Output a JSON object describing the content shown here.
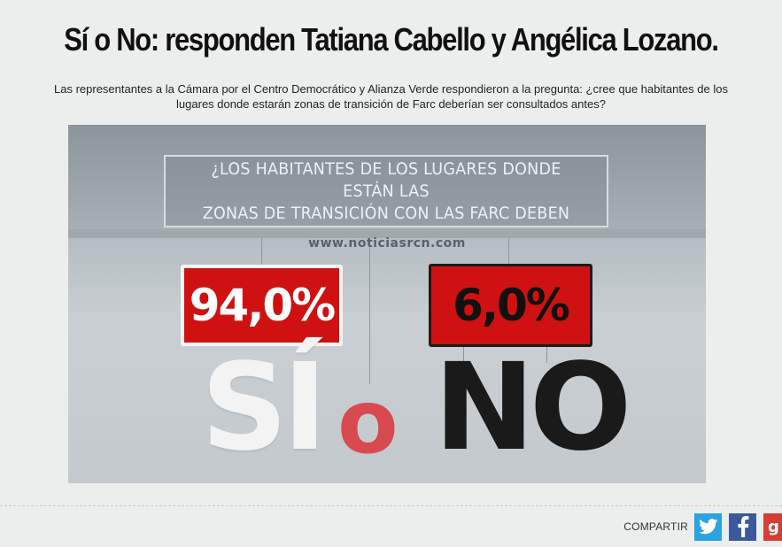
{
  "article": {
    "title": "Sí o No: responden Tatiana Cabello y Angélica Lozano.",
    "lead": "Las representantes a la Cámara por el Centro Democrático y Alianza Verde respondieron a la pregunta: ¿cree que habitantes de los lugares donde estarán zonas de transición de Farc deberían ser consultados antes?"
  },
  "media": {
    "question_lines": [
      "¿LOS HABITANTES DE LOS LUGARES DONDE",
      "ESTÁN LAS",
      "ZONAS DE TRANSICIÓN CON LAS FARC DEBEN"
    ],
    "watermark": "www.noticiasrcn.com",
    "yes_percent": "94,0%",
    "no_percent": "6,0%",
    "yes_word": "SÍ",
    "or_word": "o",
    "no_word": "NO",
    "colors": {
      "yes_box": "#cf1111",
      "no_box": "#cf1111",
      "or_word": "#d84a50"
    }
  },
  "share": {
    "label": "COMPARTIR",
    "buttons": [
      {
        "name": "twitter",
        "icon": "twitter-bird-icon",
        "color": "#2aa3e0"
      },
      {
        "name": "facebook",
        "icon": "facebook-f-icon",
        "color": "#3b5a9a"
      },
      {
        "name": "google-plus",
        "icon": "google-plus-icon",
        "color": "#d73d32",
        "glyph": "g"
      }
    ]
  }
}
